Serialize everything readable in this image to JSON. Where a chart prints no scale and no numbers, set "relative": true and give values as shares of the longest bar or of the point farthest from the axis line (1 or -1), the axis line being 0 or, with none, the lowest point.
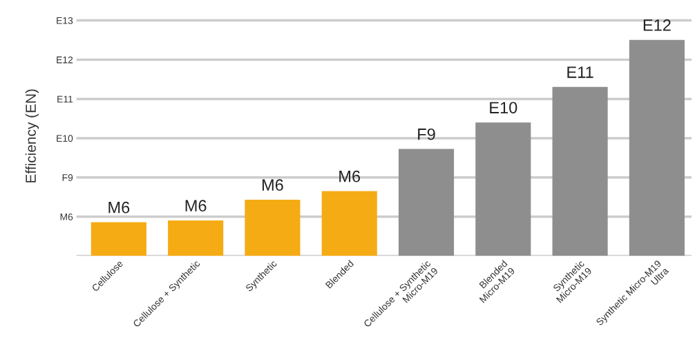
{
  "chart_data": {
    "type": "bar",
    "ylabel": "Efficiency (EN)",
    "relative": true,
    "categories": [
      "Cellulose",
      "Cellulose + Synthetic",
      "Synthetic",
      "Blended",
      "Cellulose + Synthetic\nMicro-M19",
      "Blended\nMicro-M19",
      "Synthetic\nMicro-M19",
      "Synthetic Micro-M19\nUltra"
    ],
    "values": [
      0.156,
      0.164,
      0.26,
      0.3,
      0.495,
      0.618,
      0.782,
      1
    ],
    "colors": [
      "#f5ab14",
      "#f5ab14",
      "#f5ab14",
      "#f5ab14",
      "#8e8e8e",
      "#8e8e8e",
      "#8e8e8e",
      "#8e8e8e"
    ],
    "annotations": [
      "M6",
      "F9",
      "E10",
      "E11",
      "E12",
      "E13",
      {
        "text": "M6",
        "x": "Cellulose",
        "y": 0.156
      },
      {
        "text": "M6",
        "x": "Cellulose + Synthetic",
        "y": 0.164
      },
      {
        "text": "M6",
        "x": "Synthetic",
        "y": 0.26
      },
      {
        "text": "M6",
        "x": "Blended",
        "y": 0.3
      },
      {
        "text": "F9",
        "x": "Cellulose + Synthetic\nMicro-M19",
        "y": 0.495
      },
      {
        "text": "E10",
        "x": "Blended\nMicro-M19",
        "y": 0.618
      },
      {
        "text": "E11",
        "x": "Synthetic\nMicro-M19",
        "y": 0.782
      },
      {
        "text": "E12",
        "x": "Synthetic Micro-M19\nUltra",
        "y": 1
      }
    ],
    "grid": "y"
  }
}
